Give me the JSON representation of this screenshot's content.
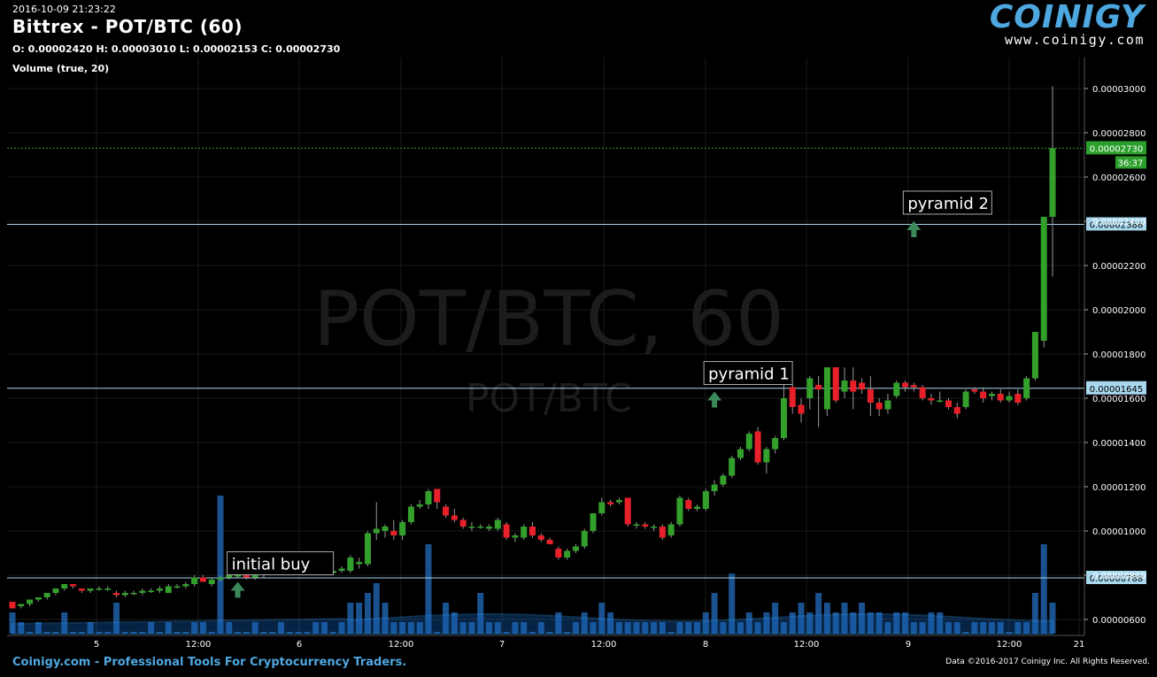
{
  "header": {
    "timestamp": "2016-10-09 21:23:22",
    "title": "Bittrex - POT/BTC (60)",
    "ohlc": "O: 0.00002420 H: 0.00003010 L: 0.00002153 C: 0.00002730",
    "volume_label": "Volume (true, 20)"
  },
  "logo": {
    "name": "COINIGY",
    "url": "www.coinigy.com"
  },
  "footer": {
    "left": "Coinigy.com - Professional Tools For Cryptocurrency Traders.",
    "right": "Data ©2016-2017 Coinigy Inc. All Rights Reserved."
  },
  "colors": {
    "up": "#33a02c",
    "down": "#e8202a",
    "volume": "#1f5fa8",
    "hline": "#a8d8ee",
    "last": "#2ca02c"
  },
  "chart_data": {
    "type": "candlestick",
    "watermark": {
      "main": "POT/BTC, 60",
      "sub": "POT/BTC"
    },
    "ylim": [
      5.6e-06,
      3.2e-06
    ],
    "y_ticks": [
      "0.00000600",
      "0.00000800",
      "0.00001000",
      "0.00001200",
      "0.00001400",
      "0.00001600",
      "0.00001800",
      "0.00002000",
      "0.00002200",
      "0.00002400",
      "0.00002600",
      "0.00002800",
      "0.00003000"
    ],
    "x_ticks": [
      "5",
      "12:00",
      "6",
      "12:00",
      "7",
      "12:00",
      "8",
      "12:00",
      "9",
      "12:00",
      "21"
    ],
    "last_price": {
      "value": "0.00002730",
      "timer": "36:37"
    },
    "horizontal_lines": [
      "0.00002386",
      "0.00001645",
      "0.00000788"
    ],
    "annotations": [
      {
        "text": "initial buy",
        "x_index": 26,
        "price": 7.3e-06
      },
      {
        "text": "pyramid 1",
        "x_index": 81,
        "price": 1.59e-05
      },
      {
        "text": "pyramid 2",
        "x_index": 104,
        "price": 2.36e-05
      }
    ],
    "candles": [
      [
        6.8e-06,
        6.8e-06,
        6.5e-06,
        6.5e-06
      ],
      [
        6.6e-06,
        6.7e-06,
        6.5e-06,
        6.7e-06
      ],
      [
        6.7e-06,
        6.9e-06,
        6.6e-06,
        6.9e-06
      ],
      [
        6.9e-06,
        7e-06,
        6.8e-06,
        7e-06
      ],
      [
        7e-06,
        7.2e-06,
        6.9e-06,
        7.2e-06
      ],
      [
        7.2e-06,
        7.4e-06,
        7.1e-06,
        7.4e-06
      ],
      [
        7.4e-06,
        7.6e-06,
        7.3e-06,
        7.6e-06
      ],
      [
        7.6e-06,
        7.6e-06,
        7.4e-06,
        7.5e-06
      ],
      [
        7.4e-06,
        7.4e-06,
        7.2e-06,
        7.3e-06
      ],
      [
        7.3e-06,
        7.4e-06,
        7.2e-06,
        7.4e-06
      ],
      [
        7.4e-06,
        7.5e-06,
        7.3e-06,
        7.4e-06
      ],
      [
        7.4e-06,
        7.5e-06,
        7.3e-06,
        7.4e-06
      ],
      [
        7.2e-06,
        7.3e-06,
        7e-06,
        7.1e-06
      ],
      [
        7.1e-06,
        7.3e-06,
        7e-06,
        7.2e-06
      ],
      [
        7.2e-06,
        7.3e-06,
        7.1e-06,
        7.2e-06
      ],
      [
        7.2e-06,
        7.4e-06,
        7.1e-06,
        7.3e-06
      ],
      [
        7.3e-06,
        7.4e-06,
        7.2e-06,
        7.3e-06
      ],
      [
        7.3e-06,
        7.5e-06,
        7.2e-06,
        7.4e-06
      ],
      [
        7.2e-06,
        7.6e-06,
        7.2e-06,
        7.5e-06
      ],
      [
        7.5e-06,
        7.6e-06,
        7.4e-06,
        7.5e-06
      ],
      [
        7.5e-06,
        7.7e-06,
        7.4e-06,
        7.6e-06
      ],
      [
        7.6e-06,
        8e-06,
        7.5e-06,
        7.9e-06
      ],
      [
        7.9e-06,
        8e-06,
        7.7e-06,
        7.7e-06
      ],
      [
        7.6e-06,
        7.9e-06,
        7.5e-06,
        7.8e-06
      ],
      [
        7.8e-06,
        8e-06,
        7.7e-06,
        7.9e-06
      ],
      [
        7.9e-06,
        8.1e-06,
        7.8e-06,
        8e-06
      ],
      [
        8e-06,
        8.1e-06,
        7.9e-06,
        8e-06
      ],
      [
        8e-06,
        8.1e-06,
        7.8e-06,
        7.9e-06
      ],
      [
        7.9e-06,
        8e-06,
        7.8e-06,
        8e-06
      ],
      [
        8e-06,
        8.4e-06,
        7.9e-06,
        8.3e-06
      ],
      [
        8.3e-06,
        8.6e-06,
        8.2e-06,
        8.5e-06
      ],
      [
        8.5e-06,
        8.7e-06,
        8.4e-06,
        8.6e-06
      ],
      [
        8.4e-06,
        8.5e-06,
        8.2e-06,
        8.3e-06
      ],
      [
        8.4e-06,
        8.5e-06,
        8.1e-06,
        8.1e-06
      ],
      [
        8.4e-06,
        8.5e-06,
        8.1e-06,
        8.1e-06
      ],
      [
        8.1e-06,
        8.2e-06,
        8e-06,
        8.1e-06
      ],
      [
        8.1e-06,
        8.2e-06,
        8e-06,
        8.1e-06
      ],
      [
        8.1e-06,
        8.2e-06,
        8e-06,
        8.2e-06
      ],
      [
        8.2e-06,
        8.4e-06,
        8.1e-06,
        8.3e-06
      ],
      [
        8.2e-06,
        8.9e-06,
        8.1e-06,
        8.8e-06
      ],
      [
        8.5e-06,
        8.8e-06,
        8.3e-06,
        8.6e-06
      ],
      [
        8.5e-06,
        1e-05,
        8.4e-06,
        9.9e-06
      ],
      [
        9.9e-06,
        1.13e-05,
        9.6e-06,
        1.01e-05
      ],
      [
        1e-05,
        1.03e-05,
        9.7e-06,
        1.02e-05
      ],
      [
        1e-05,
        1.05e-05,
        9.6e-06,
        9.8e-06
      ],
      [
        9.8e-06,
        1.05e-05,
        9.6e-06,
        1.04e-05
      ],
      [
        1.04e-05,
        1.12e-05,
        1.03e-05,
        1.11e-05
      ],
      [
        1.11e-05,
        1.14e-05,
        1.1e-05,
        1.12e-05
      ],
      [
        1.12e-05,
        1.19e-05,
        1.1e-05,
        1.18e-05
      ],
      [
        1.19e-05,
        1.19e-05,
        1.1e-05,
        1.13e-05
      ],
      [
        1.11e-05,
        1.12e-05,
        1.06e-05,
        1.07e-05
      ],
      [
        1.07e-05,
        1.1e-05,
        1.04e-05,
        1.05e-05
      ],
      [
        1.05e-05,
        1.06e-05,
        1.01e-05,
        1.02e-05
      ],
      [
        1.02e-05,
        1.04e-05,
        1e-05,
        1.02e-05
      ],
      [
        1.02e-05,
        1.03e-05,
        1.01e-05,
        1.02e-05
      ],
      [
        1.01e-05,
        1.03e-05,
        1e-05,
        1.02e-05
      ],
      [
        1.01e-05,
        1.06e-05,
        1e-05,
        1.05e-05
      ],
      [
        1.03e-05,
        1.04e-05,
        9.6e-06,
        9.7e-06
      ],
      [
        9.7e-06,
        9.9e-06,
        9.5e-06,
        9.8e-06
      ],
      [
        9.7e-06,
        1.03e-05,
        9.6e-06,
        1.02e-05
      ],
      [
        1.02e-05,
        1.04e-05,
        9.7e-06,
        9.8e-06
      ],
      [
        9.8e-06,
        9.9e-06,
        9.5e-06,
        9.6e-06
      ],
      [
        9.6e-06,
        9.7e-06,
        9.4e-06,
        9.4e-06
      ],
      [
        9.2e-06,
        9.3e-06,
        8.7e-06,
        8.8e-06
      ],
      [
        8.8e-06,
        9.2e-06,
        8.7e-06,
        9.1e-06
      ],
      [
        9.1e-06,
        9.4e-06,
        9e-06,
        9.3e-06
      ],
      [
        9.3e-06,
        1.01e-05,
        9.2e-06,
        1e-05
      ],
      [
        1e-05,
        1.08e-05,
        9.9e-06,
        1.08e-05
      ],
      [
        1.08e-05,
        1.15e-05,
        1.07e-05,
        1.13e-05
      ],
      [
        1.13e-05,
        1.14e-05,
        1.11e-05,
        1.12e-05
      ],
      [
        1.13e-05,
        1.15e-05,
        1.12e-05,
        1.14e-05
      ],
      [
        1.15e-05,
        1.15e-05,
        1.02e-05,
        1.03e-05
      ],
      [
        1.03e-05,
        1.04e-05,
        1.01e-05,
        1.03e-05
      ],
      [
        1.03e-05,
        1.04e-05,
        1.01e-05,
        1.02e-05
      ],
      [
        1.02e-05,
        1.03e-05,
        1e-05,
        1.02e-05
      ],
      [
        1.02e-05,
        1.03e-05,
        9.6e-06,
        9.7e-06
      ],
      [
        9.8e-06,
        1.04e-05,
        9.7e-06,
        1.03e-05
      ],
      [
        1.03e-05,
        1.16e-05,
        1.02e-05,
        1.15e-05
      ],
      [
        1.14e-05,
        1.15e-05,
        1.09e-05,
        1.1e-05
      ],
      [
        1.1e-05,
        1.12e-05,
        1.09e-05,
        1.11e-05
      ],
      [
        1.1e-05,
        1.19e-05,
        1.09e-05,
        1.18e-05
      ],
      [
        1.18e-05,
        1.23e-05,
        1.16e-05,
        1.21e-05
      ],
      [
        1.21e-05,
        1.26e-05,
        1.2e-05,
        1.25e-05
      ],
      [
        1.25e-05,
        1.34e-05,
        1.24e-05,
        1.33e-05
      ],
      [
        1.33e-05,
        1.38e-05,
        1.32e-05,
        1.37e-05
      ],
      [
        1.37e-05,
        1.45e-05,
        1.36e-05,
        1.44e-05
      ],
      [
        1.45e-05,
        1.47e-05,
        1.3e-05,
        1.31e-05
      ],
      [
        1.31e-05,
        1.38e-05,
        1.26e-05,
        1.37e-05
      ],
      [
        1.37e-05,
        1.43e-05,
        1.35e-05,
        1.42e-05
      ],
      [
        1.42e-05,
        1.73e-05,
        1.41e-05,
        1.6e-05
      ],
      [
        1.65e-05,
        1.66e-05,
        1.53e-05,
        1.56e-05
      ],
      [
        1.57e-05,
        1.6e-05,
        1.49e-05,
        1.53e-05
      ],
      [
        1.6e-05,
        1.7e-05,
        1.55e-05,
        1.69e-05
      ],
      [
        1.66e-05,
        1.7e-05,
        1.47e-05,
        1.64e-05
      ],
      [
        1.55e-05,
        1.74e-05,
        1.52e-05,
        1.74e-05
      ],
      [
        1.74e-05,
        1.74e-05,
        1.58e-05,
        1.59e-05
      ],
      [
        1.63e-05,
        1.74e-05,
        1.6e-05,
        1.68e-05
      ],
      [
        1.68e-05,
        1.74e-05,
        1.55e-05,
        1.63e-05
      ],
      [
        1.67e-05,
        1.69e-05,
        1.62e-05,
        1.64e-05
      ],
      [
        1.64e-05,
        1.7e-05,
        1.52e-05,
        1.58e-05
      ],
      [
        1.58e-05,
        1.6e-05,
        1.52e-05,
        1.55e-05
      ],
      [
        1.55e-05,
        1.62e-05,
        1.53e-05,
        1.59e-05
      ],
      [
        1.61e-05,
        1.68e-05,
        1.6e-05,
        1.67e-05
      ],
      [
        1.67e-05,
        1.68e-05,
        1.63e-05,
        1.65e-05
      ],
      [
        1.66e-05,
        1.67e-05,
        1.63e-05,
        1.65e-05
      ],
      [
        1.65e-05,
        1.66e-05,
        1.59e-05,
        1.6e-05
      ],
      [
        1.6e-05,
        1.62e-05,
        1.57e-05,
        1.59e-05
      ],
      [
        1.59e-05,
        1.63e-05,
        1.58e-05,
        1.59e-05
      ],
      [
        1.59e-05,
        1.6e-05,
        1.55e-05,
        1.56e-05
      ],
      [
        1.56e-05,
        1.58e-05,
        1.51e-05,
        1.53e-05
      ],
      [
        1.56e-05,
        1.64e-05,
        1.55e-05,
        1.63e-05
      ],
      [
        1.64e-05,
        1.65e-05,
        1.62e-05,
        1.63e-05
      ],
      [
        1.63e-05,
        1.65e-05,
        1.58e-05,
        1.6e-05
      ],
      [
        1.61e-05,
        1.63e-05,
        1.59e-05,
        1.62e-05
      ],
      [
        1.62e-05,
        1.64e-05,
        1.58e-05,
        1.59e-05
      ],
      [
        1.59e-05,
        1.63e-05,
        1.58e-05,
        1.61e-05
      ],
      [
        1.62e-05,
        1.64e-05,
        1.57e-05,
        1.58e-05
      ],
      [
        1.6e-05,
        1.7e-05,
        1.59e-05,
        1.69e-05
      ],
      [
        1.69e-05,
        1.9e-05,
        1.68e-05,
        1.9e-05
      ],
      [
        1.86e-05,
        2.42e-05,
        1.83e-05,
        2.42e-05
      ],
      [
        2.42e-05,
        3.01e-05,
        2.15e-05,
        2.73e-05
      ]
    ],
    "volume": [
      2,
      1,
      0,
      0,
      1,
      0,
      0,
      2,
      0,
      0,
      0,
      0,
      0,
      0,
      0,
      0,
      0,
      0,
      0,
      0,
      0,
      0,
      0,
      0,
      0,
      0,
      0,
      0,
      0,
      0,
      0,
      0,
      0,
      0,
      0,
      0,
      0,
      0,
      0,
      0,
      0,
      0,
      0,
      0,
      0,
      0,
      0,
      0,
      0,
      0,
      0,
      0,
      0,
      0,
      0,
      0,
      0,
      0,
      0,
      0,
      0,
      0,
      0,
      0,
      0,
      0,
      0,
      0,
      0,
      0,
      0,
      0,
      0,
      0,
      0,
      0,
      0,
      0,
      0,
      0,
      0,
      0,
      0,
      0,
      0,
      0,
      0,
      0,
      0,
      0,
      0,
      0,
      0,
      0,
      0,
      0,
      0,
      0,
      0,
      0,
      0,
      0,
      0,
      0,
      0,
      0,
      0,
      0,
      0,
      0,
      0,
      0,
      0,
      0,
      0,
      0,
      0,
      0,
      0,
      0,
      0
    ]
  }
}
